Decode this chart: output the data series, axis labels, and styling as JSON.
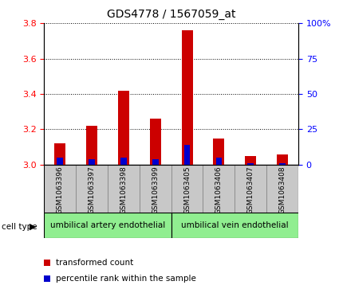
{
  "title": "GDS4778 / 1567059_at",
  "samples": [
    "GSM1063396",
    "GSM1063397",
    "GSM1063398",
    "GSM1063399",
    "GSM1063405",
    "GSM1063406",
    "GSM1063407",
    "GSM1063408"
  ],
  "red_values": [
    3.12,
    3.22,
    3.42,
    3.26,
    3.76,
    3.15,
    3.05,
    3.06
  ],
  "blue_values": [
    3.04,
    3.03,
    3.04,
    3.03,
    3.11,
    3.04,
    3.01,
    3.01
  ],
  "ymin": 3.0,
  "ymax": 3.8,
  "yticks": [
    3.0,
    3.2,
    3.4,
    3.6,
    3.8
  ],
  "right_yticks": [
    0,
    25,
    50,
    75,
    100
  ],
  "right_yticklabels": [
    "0",
    "25",
    "50",
    "75",
    "100%"
  ],
  "cell_type_groups": [
    {
      "label": "umbilical artery endothelial",
      "start": 0,
      "end": 4,
      "color": "#90EE90"
    },
    {
      "label": "umbilical vein endothelial",
      "start": 4,
      "end": 8,
      "color": "#90EE90"
    }
  ],
  "cell_type_label": "cell type",
  "legend_items": [
    {
      "color": "#CC0000",
      "label": "transformed count"
    },
    {
      "color": "#0000CC",
      "label": "percentile rank within the sample"
    }
  ],
  "bar_width": 0.35,
  "base": 3.0,
  "red_color": "#CC0000",
  "blue_color": "#0000CC",
  "tick_bg_color": "#C8C8C8",
  "plot_bg_color": "#FFFFFF"
}
